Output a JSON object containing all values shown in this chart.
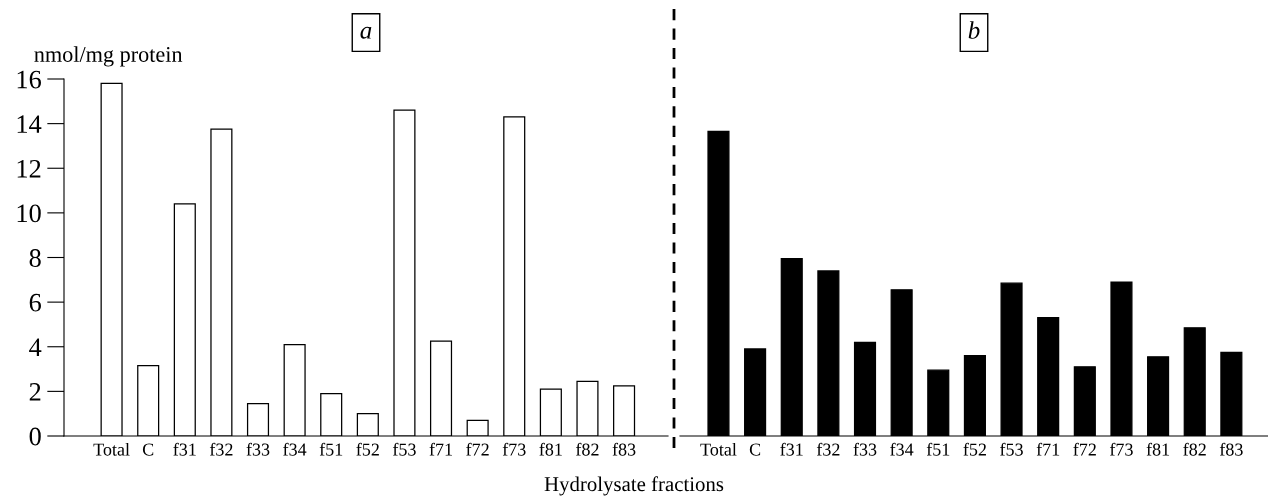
{
  "chart_data": [
    {
      "type": "bar",
      "title": "a",
      "ylabel": "nmol/mg protein",
      "xlabel": "Hydrolysate fractions",
      "categories": [
        "Total",
        "C",
        "f31",
        "f32",
        "f33",
        "f34",
        "f51",
        "f52",
        "f53",
        "f71",
        "f72",
        "f73",
        "f81",
        "f82",
        "f83"
      ],
      "values": [
        15.8,
        3.15,
        10.4,
        13.75,
        1.45,
        4.1,
        1.9,
        1.0,
        14.6,
        4.25,
        0.7,
        14.3,
        2.1,
        2.45,
        2.25
      ],
      "color": "#ffffff",
      "ylim": [
        0,
        16
      ],
      "yticks": [
        0,
        2,
        4,
        6,
        8,
        10,
        12,
        14,
        16
      ]
    },
    {
      "type": "bar",
      "title": "b",
      "categories": [
        "Total",
        "C",
        "f31",
        "f32",
        "f33",
        "f34",
        "f51",
        "f52",
        "f53",
        "f71",
        "f72",
        "f73",
        "f81",
        "f82",
        "f83"
      ],
      "values": [
        13.65,
        3.9,
        7.95,
        7.4,
        4.2,
        6.55,
        2.95,
        3.6,
        6.85,
        5.3,
        3.1,
        6.9,
        3.55,
        4.85,
        3.75
      ],
      "color": "#000000",
      "ylim": [
        0,
        16
      ],
      "yticks": [
        0,
        2,
        4,
        6,
        8,
        10,
        12,
        14,
        16
      ],
      "tick_labels": "x"
    }
  ]
}
